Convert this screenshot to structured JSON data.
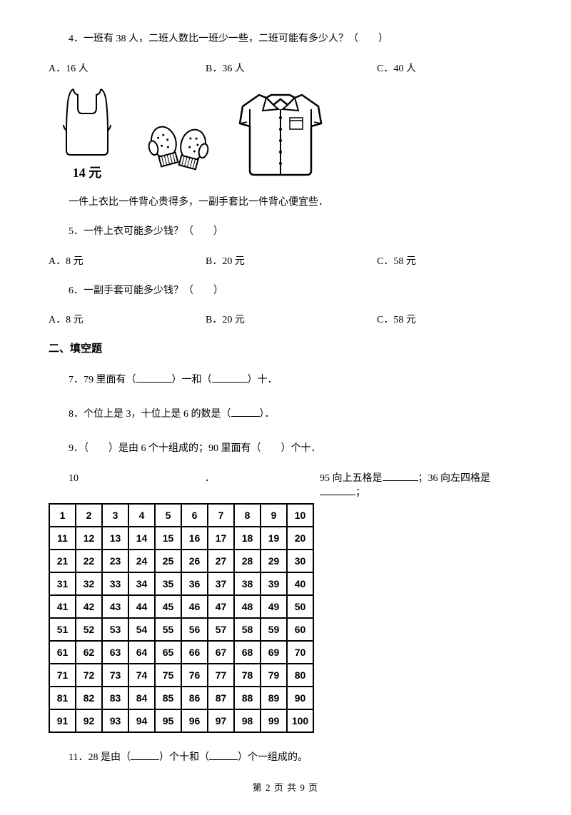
{
  "q4": {
    "text": "4．一班有 38 人，二班人数比一班少一些，二班可能有多少人？（　　）",
    "a": "A．16 人",
    "b": "B．36 人",
    "c": "C．40 人"
  },
  "images": {
    "vest_price": "14 元"
  },
  "context": "一件上衣比一件背心贵得多，一副手套比一件背心便宜些．",
  "q5": {
    "text": "5．一件上衣可能多少钱？（　　）",
    "a": "A．8 元",
    "b": "B．20 元",
    "c": "C．58 元"
  },
  "q6": {
    "text": "6．一副手套可能多少钱？（　　）",
    "a": "A．8 元",
    "b": "B．20 元",
    "c": "C．58 元"
  },
  "section2_title": "二、填空题",
  "q7": {
    "pre": "7．79 里面有（",
    "mid": "）一和（",
    "post": "）十．"
  },
  "q8": {
    "pre": "8．个位上是 3，十位上是 6 的数是（",
    "post": "）．"
  },
  "q9": "9．（　　）是由 6 个十组成的；90 里面有（　　）个十．",
  "q10": {
    "left_a": "10",
    "left_b": "．",
    "right_a": "95 向上五格是",
    "right_b": "；36 向左四格是",
    "right_c": "；"
  },
  "number_grid": {
    "rows": [
      [
        1,
        2,
        3,
        4,
        5,
        6,
        7,
        8,
        9,
        10
      ],
      [
        11,
        12,
        13,
        14,
        15,
        16,
        17,
        18,
        19,
        20
      ],
      [
        21,
        22,
        23,
        24,
        25,
        26,
        27,
        28,
        29,
        30
      ],
      [
        31,
        32,
        33,
        34,
        35,
        36,
        37,
        38,
        39,
        40
      ],
      [
        41,
        42,
        43,
        44,
        45,
        46,
        47,
        48,
        49,
        50
      ],
      [
        51,
        52,
        53,
        54,
        55,
        56,
        57,
        58,
        59,
        60
      ],
      [
        61,
        62,
        63,
        64,
        65,
        66,
        67,
        68,
        69,
        70
      ],
      [
        71,
        72,
        73,
        74,
        75,
        76,
        77,
        78,
        79,
        80
      ],
      [
        81,
        82,
        83,
        84,
        85,
        86,
        87,
        88,
        89,
        90
      ],
      [
        91,
        92,
        93,
        94,
        95,
        96,
        97,
        98,
        99,
        100
      ]
    ]
  },
  "q11": {
    "pre": "11．28 是由（",
    "mid": "）个十和（",
    "post": "）个一组成的。"
  },
  "footer": "第 2 页 共 9 页"
}
